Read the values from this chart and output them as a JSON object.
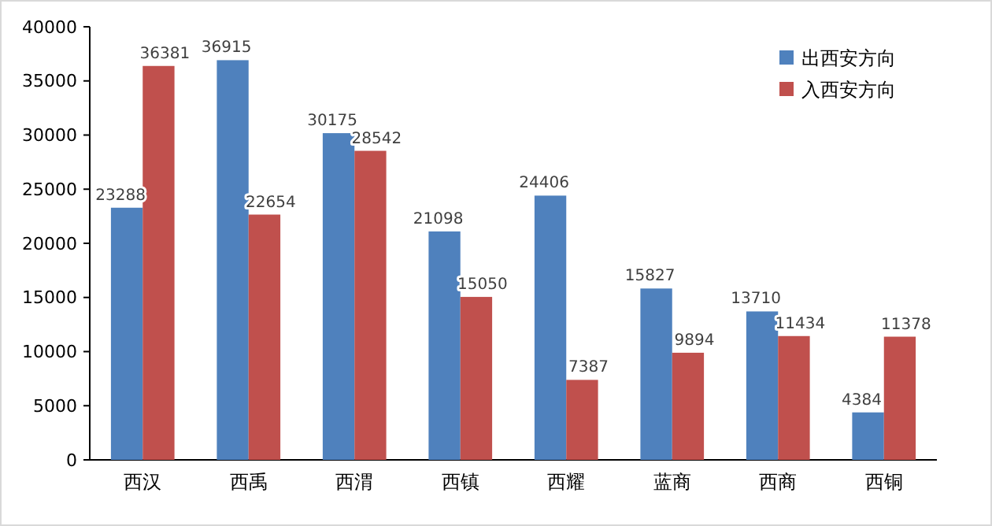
{
  "chart_data": {
    "type": "bar",
    "categories": [
      "西汉",
      "西禹",
      "西渭",
      "西镇",
      "西耀",
      "蓝商",
      "西商",
      "西铜"
    ],
    "series": [
      {
        "name": "出西安方向",
        "color": "#4f81bd",
        "values": [
          23288,
          36915,
          30175,
          21098,
          24406,
          15827,
          13710,
          4384
        ]
      },
      {
        "name": "入西安方向",
        "color": "#c0504d",
        "values": [
          36381,
          22654,
          28542,
          15050,
          7387,
          9894,
          11434,
          11378
        ]
      }
    ],
    "ylim": [
      0,
      40000
    ],
    "yticks": [
      0,
      5000,
      10000,
      15000,
      20000,
      25000,
      30000,
      35000,
      40000
    ],
    "grid": false,
    "legend": "top right",
    "data_labels": true
  }
}
